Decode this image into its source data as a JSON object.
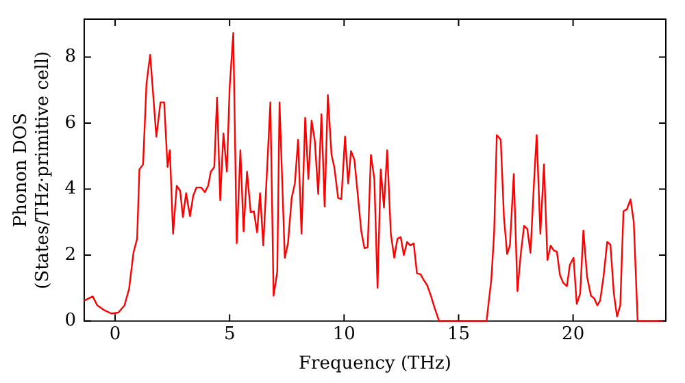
{
  "chart_data": {
    "type": "line",
    "xlabel": "Frequency (THz)",
    "ylabel": "Phonon DOS\n(States/THz·primitive cell)",
    "xlim": [
      -1.35,
      24.05
    ],
    "ylim": [
      0,
      9.15
    ],
    "xticks": [
      0,
      5,
      10,
      15,
      20
    ],
    "yticks": [
      0,
      2,
      4,
      6,
      8
    ],
    "marker": "none",
    "line_style": "solid",
    "series": [
      {
        "color": "#ff0000",
        "x": [
          -1.35,
          -0.98,
          -0.78,
          -0.47,
          -0.16,
          0.14,
          0.41,
          0.61,
          0.8,
          0.96,
          1.06,
          1.22,
          1.37,
          1.53,
          1.8,
          1.98,
          2.14,
          2.29,
          2.39,
          2.53,
          2.69,
          2.84,
          2.96,
          3.1,
          3.27,
          3.41,
          3.55,
          3.76,
          3.92,
          4.06,
          4.18,
          4.33,
          4.45,
          4.59,
          4.73,
          4.88,
          5.0,
          5.16,
          5.31,
          5.47,
          5.61,
          5.76,
          5.92,
          6.06,
          6.2,
          6.33,
          6.47,
          6.78,
          6.92,
          7.08,
          7.18,
          7.41,
          7.55,
          7.71,
          7.85,
          7.99,
          8.14,
          8.3,
          8.44,
          8.58,
          8.72,
          8.87,
          9.01,
          9.15,
          9.29,
          9.45,
          9.57,
          9.74,
          9.88,
          10.04,
          10.18,
          10.3,
          10.45,
          10.59,
          10.75,
          10.89,
          11.03,
          11.17,
          11.32,
          11.46,
          11.6,
          11.74,
          11.88,
          12.04,
          12.19,
          12.33,
          12.47,
          12.61,
          12.75,
          12.89,
          13.04,
          13.18,
          13.34,
          13.48,
          13.62,
          13.79,
          13.95,
          14.15,
          15,
          16.22,
          16.43,
          16.55,
          16.67,
          16.84,
          16.98,
          17.12,
          17.24,
          17.41,
          17.57,
          17.71,
          17.86,
          18.0,
          18.14,
          18.29,
          18.41,
          18.57,
          18.73,
          18.88,
          19.02,
          19.16,
          19.29,
          19.43,
          19.57,
          19.73,
          19.86,
          20.02,
          20.16,
          20.31,
          20.45,
          20.61,
          20.78,
          20.92,
          21.06,
          21.18,
          21.33,
          21.49,
          21.63,
          21.78,
          21.92,
          22.06,
          22.2,
          22.35,
          22.51,
          22.65,
          22.82,
          23.9
        ],
        "values": [
          0.62,
          0.75,
          0.48,
          0.33,
          0.23,
          0.26,
          0.48,
          0.98,
          2.07,
          2.5,
          4.6,
          4.75,
          7.2,
          8.07,
          5.59,
          6.63,
          6.63,
          4.67,
          5.18,
          2.65,
          4.1,
          3.95,
          3.15,
          3.88,
          3.18,
          3.8,
          4.05,
          4.05,
          3.91,
          4.1,
          4.53,
          4.67,
          6.77,
          3.66,
          5.69,
          4.53,
          7.06,
          8.73,
          2.36,
          5.18,
          2.72,
          4.53,
          3.3,
          3.33,
          2.69,
          3.88,
          2.29,
          6.63,
          0.77,
          1.49,
          6.63,
          1.92,
          2.36,
          3.73,
          4.17,
          5.5,
          2.65,
          6.16,
          4.31,
          6.08,
          5.47,
          3.85,
          6.27,
          3.47,
          6.85,
          5.04,
          4.67,
          3.73,
          3.7,
          5.59,
          4.17,
          5.15,
          4.89,
          3.88,
          2.72,
          2.21,
          2.24,
          5.04,
          4.31,
          1.01,
          4.6,
          3.44,
          5.18,
          2.65,
          1.92,
          2.5,
          2.55,
          2.0,
          2.4,
          2.29,
          2.36,
          1.45,
          1.42,
          1.24,
          1.1,
          0.77,
          0.41,
          0,
          0,
          0,
          1.27,
          2.65,
          5.64,
          5.5,
          3.15,
          2.03,
          2.29,
          4.46,
          0.91,
          2.0,
          2.89,
          2.79,
          2.07,
          4.17,
          5.64,
          2.65,
          4.75,
          1.85,
          2.29,
          2.14,
          2.11,
          1.39,
          1.16,
          1.06,
          1.71,
          1.92,
          0.52,
          0.84,
          2.75,
          1.35,
          0.77,
          0.69,
          0.48,
          0.62,
          1.35,
          2.4,
          2.32,
          0.84,
          0.14,
          0.48,
          3.33,
          3.39,
          3.69,
          3.01,
          0,
          0
        ]
      }
    ]
  }
}
